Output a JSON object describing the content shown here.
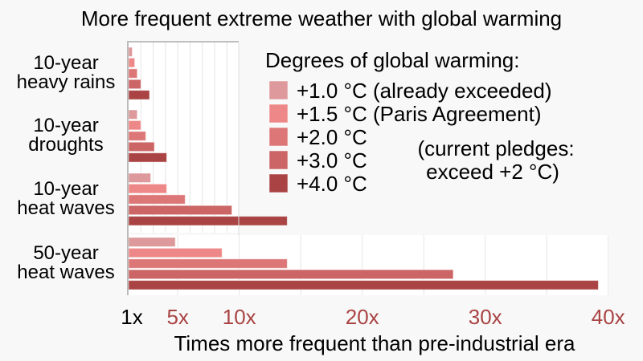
{
  "chart_data": {
    "type": "bar",
    "orientation": "horizontal",
    "title": "More frequent extreme weather with global warming",
    "xlabel": "Times more frequent than pre-industrial era",
    "xlim": [
      1,
      40
    ],
    "x_ticks": [
      {
        "value": 1,
        "label": "1x",
        "color": "#000000"
      },
      {
        "value": 5,
        "label": "5x",
        "color": "#aa4444"
      },
      {
        "value": 10,
        "label": "10x",
        "color": "#aa4444"
      },
      {
        "value": 20,
        "label": "20x",
        "color": "#aa4444"
      },
      {
        "value": 30,
        "label": "30x",
        "color": "#aa4444"
      },
      {
        "value": 40,
        "label": "40x",
        "color": "#aa4444"
      }
    ],
    "grid": true,
    "legend": {
      "title": "Degrees of global warming:",
      "placement": "top-right",
      "note_line1": "(current pledges:",
      "note_line2": "exceed +2 °C)"
    },
    "categories": [
      {
        "line1": "10-year",
        "line2": "heavy rains"
      },
      {
        "line1": "10-year",
        "line2": "droughts"
      },
      {
        "line1": "10-year",
        "line2": "heat waves"
      },
      {
        "line1": "50-year",
        "line2": "heat waves"
      }
    ],
    "series": [
      {
        "name": "+1.0 °C (already exceeded)",
        "color": "#dd999b",
        "values": [
          1.3,
          1.7,
          2.8,
          4.8
        ]
      },
      {
        "name": "+1.5 °C (Paris Agreement)",
        "color": "#ee8888",
        "values": [
          1.5,
          2.0,
          4.1,
          8.6
        ]
      },
      {
        "name": "+2.0 °C",
        "color": "#dd7777",
        "values": [
          1.7,
          2.4,
          5.6,
          13.9
        ]
      },
      {
        "name": "+3.0 °C",
        "color": "#cc6666",
        "values": [
          2.0,
          3.1,
          9.4,
          27.4
        ]
      },
      {
        "name": "+4.0 °C",
        "color": "#aa4444",
        "values": [
          2.7,
          4.1,
          13.9,
          39.2
        ]
      }
    ]
  }
}
